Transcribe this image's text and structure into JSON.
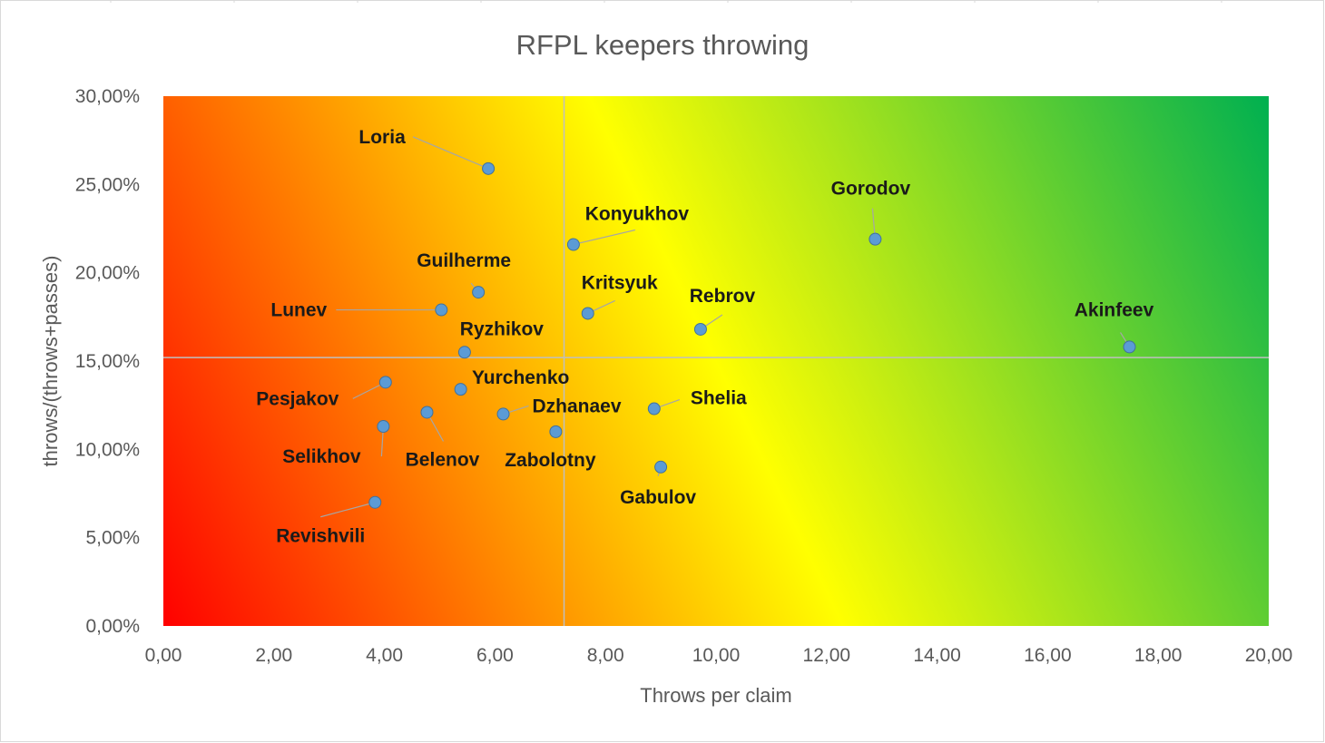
{
  "chart_data": {
    "type": "scatter",
    "title": "RFPL keepers throwing",
    "xlabel": "Throws per claim",
    "ylabel": "throws/(throws+passes)",
    "xlim": [
      0,
      20
    ],
    "ylim": [
      0,
      0.3
    ],
    "x_ticks": [
      0,
      2,
      4,
      6,
      8,
      10,
      12,
      14,
      16,
      18,
      20
    ],
    "x_tick_labels": [
      "0,00",
      "2,00",
      "4,00",
      "6,00",
      "8,00",
      "10,00",
      "12,00",
      "14,00",
      "16,00",
      "18,00",
      "20,00"
    ],
    "y_ticks": [
      0,
      0.05,
      0.1,
      0.15,
      0.2,
      0.25,
      0.3
    ],
    "y_tick_labels": [
      "0,00%",
      "5,00%",
      "10,00%",
      "15,00%",
      "20,00%",
      "25,00%",
      "30,00%"
    ],
    "grid": false,
    "quadrant_lines": {
      "x": 7.25,
      "y": 0.152
    },
    "background_gradient": {
      "from": "#ff0000",
      "mid": "#ffff00",
      "to": "#00b050"
    },
    "marker_color": "#5b9bd5",
    "points": [
      {
        "name": "Loria",
        "x": 5.88,
        "y": 0.259
      },
      {
        "name": "Gorodov",
        "x": 12.88,
        "y": 0.219
      },
      {
        "name": "Konyukhov",
        "x": 7.42,
        "y": 0.216
      },
      {
        "name": "Guilherme",
        "x": 5.7,
        "y": 0.189
      },
      {
        "name": "Lunev",
        "x": 5.03,
        "y": 0.179
      },
      {
        "name": "Kritsyuk",
        "x": 7.68,
        "y": 0.177
      },
      {
        "name": "Rebrov",
        "x": 9.72,
        "y": 0.168
      },
      {
        "name": "Akinfeev",
        "x": 17.48,
        "y": 0.158
      },
      {
        "name": "Ryzhikov",
        "x": 5.45,
        "y": 0.155
      },
      {
        "name": "Pesjakov",
        "x": 4.02,
        "y": 0.138
      },
      {
        "name": "Yurchenko",
        "x": 5.38,
        "y": 0.134
      },
      {
        "name": "Shelia",
        "x": 8.88,
        "y": 0.123
      },
      {
        "name": "Belenov",
        "x": 4.77,
        "y": 0.121
      },
      {
        "name": "Dzhanaev",
        "x": 6.15,
        "y": 0.12
      },
      {
        "name": "Selikhov",
        "x": 3.98,
        "y": 0.113
      },
      {
        "name": "Zabolotny",
        "x": 7.1,
        "y": 0.11
      },
      {
        "name": "Gabulov",
        "x": 9.0,
        "y": 0.09
      },
      {
        "name": "Revishvili",
        "x": 3.83,
        "y": 0.07
      }
    ]
  }
}
